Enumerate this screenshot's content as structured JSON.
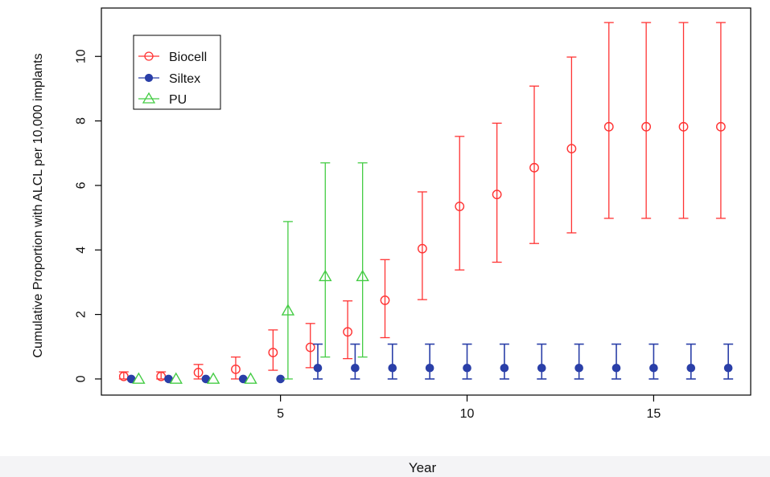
{
  "chart_data": {
    "type": "scatter",
    "title": "",
    "xlabel": "Year",
    "ylabel": "Cumulative Proportion with ALCL per 10,000 implants",
    "xlim": [
      0.2,
      17.6
    ],
    "ylim": [
      -0.5,
      11.5
    ],
    "x_ticks": [
      5,
      10,
      15
    ],
    "y_ticks": [
      0,
      2,
      4,
      6,
      8,
      10
    ],
    "grid": false,
    "legend_position": "top-left",
    "series": [
      {
        "name": "Biocell",
        "color": "#ff3333",
        "marker": "open-circle",
        "points": [
          {
            "x": 0.8,
            "y": 0.08,
            "low": 0.0,
            "high": 0.22
          },
          {
            "x": 1.8,
            "y": 0.08,
            "low": 0.0,
            "high": 0.22
          },
          {
            "x": 2.8,
            "y": 0.2,
            "low": 0.0,
            "high": 0.45
          },
          {
            "x": 3.8,
            "y": 0.3,
            "low": 0.0,
            "high": 0.68
          },
          {
            "x": 4.8,
            "y": 0.82,
            "low": 0.27,
            "high": 1.52
          },
          {
            "x": 5.8,
            "y": 0.98,
            "low": 0.35,
            "high": 1.72
          },
          {
            "x": 6.8,
            "y": 1.46,
            "low": 0.63,
            "high": 2.42
          },
          {
            "x": 7.8,
            "y": 2.44,
            "low": 1.28,
            "high": 3.7
          },
          {
            "x": 8.8,
            "y": 4.04,
            "low": 2.46,
            "high": 5.8
          },
          {
            "x": 9.8,
            "y": 5.35,
            "low": 3.38,
            "high": 7.52
          },
          {
            "x": 10.8,
            "y": 5.72,
            "low": 3.62,
            "high": 7.93
          },
          {
            "x": 11.8,
            "y": 6.55,
            "low": 4.2,
            "high": 9.08
          },
          {
            "x": 12.8,
            "y": 7.14,
            "low": 4.53,
            "high": 9.98
          },
          {
            "x": 13.8,
            "y": 7.82,
            "low": 4.98,
            "high": 11.05
          },
          {
            "x": 14.8,
            "y": 7.82,
            "low": 4.98,
            "high": 11.05
          },
          {
            "x": 15.8,
            "y": 7.82,
            "low": 4.98,
            "high": 11.05
          },
          {
            "x": 16.8,
            "y": 7.82,
            "low": 4.98,
            "high": 11.05
          }
        ]
      },
      {
        "name": "Siltex",
        "color": "#2a3fa8",
        "marker": "filled-circle",
        "points": [
          {
            "x": 1.0,
            "y": 0.0,
            "low": 0.0,
            "high": 0.0
          },
          {
            "x": 2.0,
            "y": 0.0,
            "low": 0.0,
            "high": 0.0
          },
          {
            "x": 3.0,
            "y": 0.0,
            "low": 0.0,
            "high": 0.0
          },
          {
            "x": 4.0,
            "y": 0.0,
            "low": 0.0,
            "high": 0.0
          },
          {
            "x": 5.0,
            "y": 0.0,
            "low": 0.0,
            "high": 0.0
          },
          {
            "x": 6.0,
            "y": 0.34,
            "low": 0.0,
            "high": 1.08
          },
          {
            "x": 7.0,
            "y": 0.34,
            "low": 0.0,
            "high": 1.08
          },
          {
            "x": 8.0,
            "y": 0.34,
            "low": 0.0,
            "high": 1.08
          },
          {
            "x": 9.0,
            "y": 0.34,
            "low": 0.0,
            "high": 1.08
          },
          {
            "x": 10.0,
            "y": 0.34,
            "low": 0.0,
            "high": 1.08
          },
          {
            "x": 11.0,
            "y": 0.34,
            "low": 0.0,
            "high": 1.08
          },
          {
            "x": 12.0,
            "y": 0.34,
            "low": 0.0,
            "high": 1.08
          },
          {
            "x": 13.0,
            "y": 0.34,
            "low": 0.0,
            "high": 1.08
          },
          {
            "x": 14.0,
            "y": 0.34,
            "low": 0.0,
            "high": 1.08
          },
          {
            "x": 15.0,
            "y": 0.34,
            "low": 0.0,
            "high": 1.08
          },
          {
            "x": 16.0,
            "y": 0.34,
            "low": 0.0,
            "high": 1.08
          },
          {
            "x": 17.0,
            "y": 0.34,
            "low": 0.0,
            "high": 1.08
          }
        ]
      },
      {
        "name": "PU",
        "color": "#44cc44",
        "marker": "open-triangle",
        "points": [
          {
            "x": 1.2,
            "y": 0.0,
            "low": 0.0,
            "high": 0.0
          },
          {
            "x": 2.2,
            "y": 0.0,
            "low": 0.0,
            "high": 0.0
          },
          {
            "x": 3.2,
            "y": 0.0,
            "low": 0.0,
            "high": 0.0
          },
          {
            "x": 4.2,
            "y": 0.0,
            "low": 0.0,
            "high": 0.0
          },
          {
            "x": 5.2,
            "y": 2.12,
            "low": 0.0,
            "high": 4.88
          },
          {
            "x": 6.2,
            "y": 3.18,
            "low": 0.68,
            "high": 6.7
          },
          {
            "x": 7.2,
            "y": 3.18,
            "low": 0.68,
            "high": 6.7
          }
        ]
      }
    ]
  }
}
